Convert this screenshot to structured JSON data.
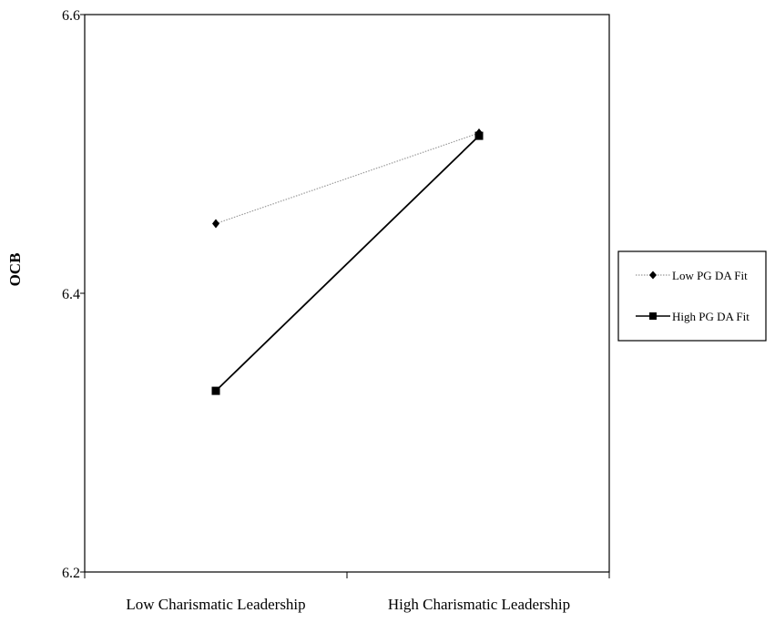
{
  "chart_data": {
    "type": "line",
    "xlabel": "",
    "ylabel": "OCB",
    "categories": [
      "Low Charismatic Leadership",
      "High Charismatic Leadership"
    ],
    "ylim": [
      6.2,
      6.6
    ],
    "yticks": [
      "6.2",
      "6.4",
      "6.6"
    ],
    "grid": false,
    "legend_position": "right",
    "series": [
      {
        "name": "Low PG DA Fit",
        "values": [
          6.45,
          6.515
        ],
        "color": "#9a9a9a",
        "marker": "diamond",
        "line_style": "dotted"
      },
      {
        "name": "High PG DA Fit",
        "values": [
          6.33,
          6.513
        ],
        "color": "#000000",
        "marker": "square",
        "line_style": "solid"
      }
    ]
  }
}
